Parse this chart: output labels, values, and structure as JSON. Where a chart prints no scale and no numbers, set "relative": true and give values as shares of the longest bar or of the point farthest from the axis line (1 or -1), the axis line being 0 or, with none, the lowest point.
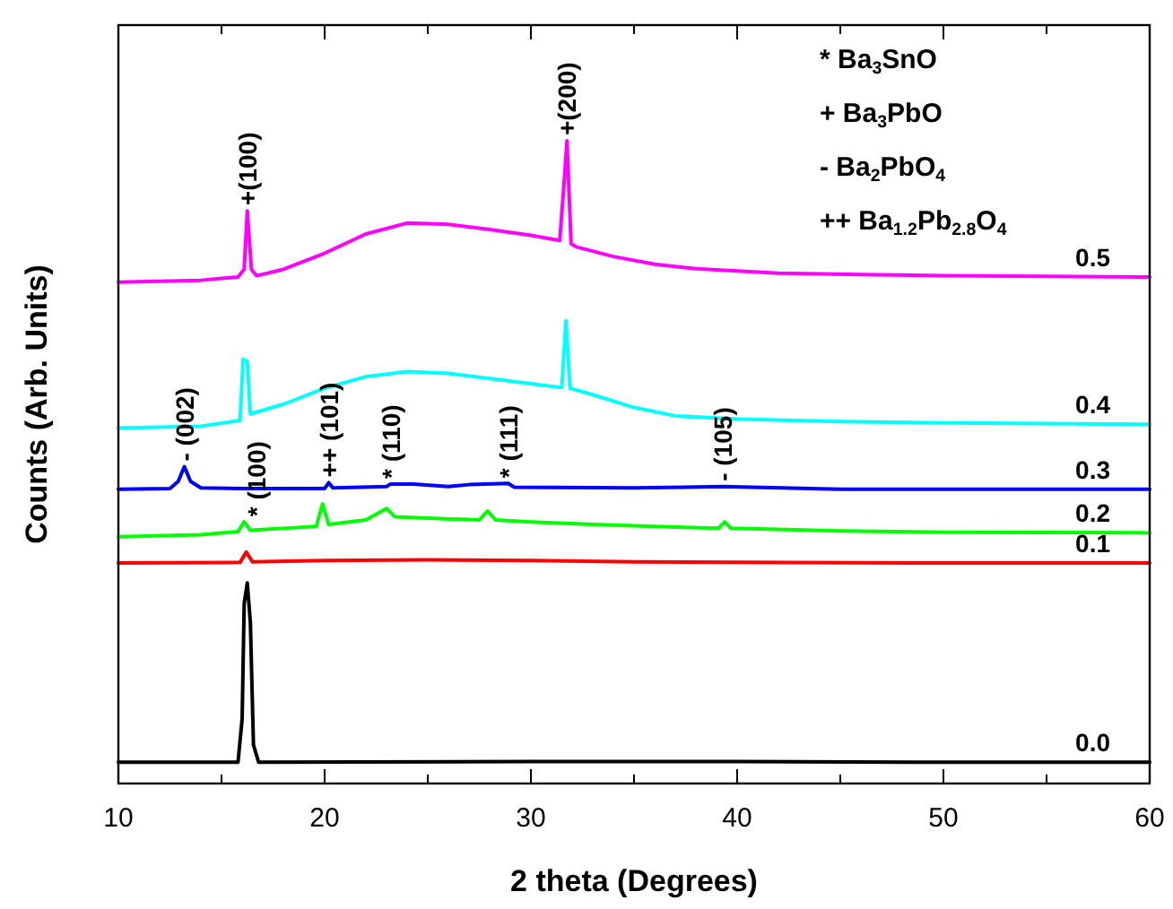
{
  "chart_data": {
    "type": "line",
    "relative": true,
    "xlabel": "2 theta (Degrees)",
    "ylabel": "Counts (Arb. Units)",
    "xlim": [
      10,
      60
    ],
    "xticks": [
      10,
      {
        "value": 15,
        "label": null
      },
      20,
      {
        "value": 25,
        "label": null
      },
      30,
      {
        "value": 35,
        "label": null
      },
      40,
      {
        "value": 45,
        "label": null
      },
      50,
      {
        "value": 55,
        "label": null
      },
      60
    ],
    "series": [
      {
        "name": "0.5",
        "color": "#ff00ff",
        "x": [
          10,
          14,
          15.8,
          16.1,
          16.25,
          16.45,
          16.7,
          18,
          20,
          22,
          24,
          26,
          28,
          30,
          31.4,
          31.6,
          31.75,
          31.95,
          32.2,
          34,
          36,
          38,
          42,
          46,
          50,
          55,
          60
        ],
        "values": [
          0.78,
          0.783,
          0.788,
          0.8,
          0.891,
          0.8,
          0.79,
          0.8,
          0.825,
          0.855,
          0.872,
          0.87,
          0.862,
          0.853,
          0.845,
          0.93,
          1.0,
          0.84,
          0.835,
          0.82,
          0.808,
          0.801,
          0.794,
          0.792,
          0.79,
          0.789,
          0.788
        ]
      },
      {
        "name": "0.4",
        "color": "#00ffff",
        "x": [
          10,
          14,
          15.9,
          16.05,
          16.25,
          16.4,
          18,
          20,
          22,
          24,
          26,
          28,
          30,
          31.5,
          31.7,
          31.9,
          33,
          35,
          37,
          40,
          45,
          50,
          55,
          60
        ],
        "values": [
          0.553,
          0.556,
          0.565,
          0.66,
          0.657,
          0.575,
          0.59,
          0.615,
          0.633,
          0.641,
          0.638,
          0.63,
          0.622,
          0.616,
          0.72,
          0.615,
          0.605,
          0.585,
          0.572,
          0.567,
          0.563,
          0.561,
          0.56,
          0.559
        ]
      },
      {
        "name": "0.3",
        "color": "#0000ff",
        "x": [
          10,
          12.5,
          12.9,
          13.2,
          13.5,
          14,
          16,
          20,
          20.2,
          20.4,
          23,
          23.2,
          24.3,
          26,
          27,
          28.9,
          29.2,
          35,
          39.3,
          45,
          60
        ],
        "values": [
          0.458,
          0.459,
          0.47,
          0.493,
          0.47,
          0.46,
          0.459,
          0.459,
          0.468,
          0.46,
          0.462,
          0.466,
          0.466,
          0.462,
          0.465,
          0.467,
          0.461,
          0.46,
          0.462,
          0.458,
          0.458
        ]
      },
      {
        "name": "0.2",
        "color": "#00ff00",
        "x": [
          10,
          14,
          15.8,
          16.1,
          16.4,
          18,
          19.6,
          19.9,
          20.2,
          22,
          23,
          23.4,
          25,
          27.5,
          27.9,
          28.3,
          30,
          33,
          36,
          39.1,
          39.4,
          39.7,
          45,
          50,
          60
        ],
        "values": [
          0.384,
          0.387,
          0.392,
          0.407,
          0.394,
          0.397,
          0.4,
          0.435,
          0.403,
          0.41,
          0.428,
          0.415,
          0.413,
          0.41,
          0.424,
          0.41,
          0.407,
          0.403,
          0.4,
          0.397,
          0.407,
          0.397,
          0.393,
          0.391,
          0.39
        ]
      },
      {
        "name": "0.1",
        "color": "#ff0000",
        "x": [
          10,
          15.9,
          16.2,
          16.5,
          20,
          25,
          30,
          35,
          40,
          50,
          60
        ],
        "values": [
          0.343,
          0.344,
          0.36,
          0.345,
          0.347,
          0.348,
          0.347,
          0.345,
          0.344,
          0.343,
          0.343
        ]
      },
      {
        "name": "0.0",
        "color": "#000000",
        "x": [
          10,
          15.8,
          16.0,
          16.1,
          16.25,
          16.4,
          16.55,
          16.8,
          30,
          40,
          50,
          60
        ],
        "values": [
          0.033,
          0.033,
          0.1,
          0.28,
          0.312,
          0.25,
          0.06,
          0.033,
          0.034,
          0.034,
          0.033,
          0.033
        ]
      }
    ],
    "annotations": [
      {
        "text": "+(100)",
        "x": 16.26,
        "y": 0.891
      },
      {
        "text": "+(200)",
        "x": 31.75,
        "y": 1.0
      },
      {
        "text": "- (002)",
        "x": 13.2,
        "y": 0.493
      },
      {
        "text": "* (100)",
        "x": 16.7,
        "y": 0.407
      },
      {
        "text": "++ (101)",
        "x": 20.2,
        "y": 0.468
      },
      {
        "text": "* (110)",
        "x": 23.2,
        "y": 0.466
      },
      {
        "text": "* (111)",
        "x": 28.9,
        "y": 0.467
      },
      {
        "text": "- (105)",
        "x": 39.3,
        "y": 0.462
      },
      "* Ba$_{3}$SnO",
      "+ Ba$_{3}$PbO",
      "- Ba$_{2}$PbO$_{4}$",
      "++ Ba$_{1.2}$Pb$_{2.8}$O$_{4}$"
    ]
  }
}
